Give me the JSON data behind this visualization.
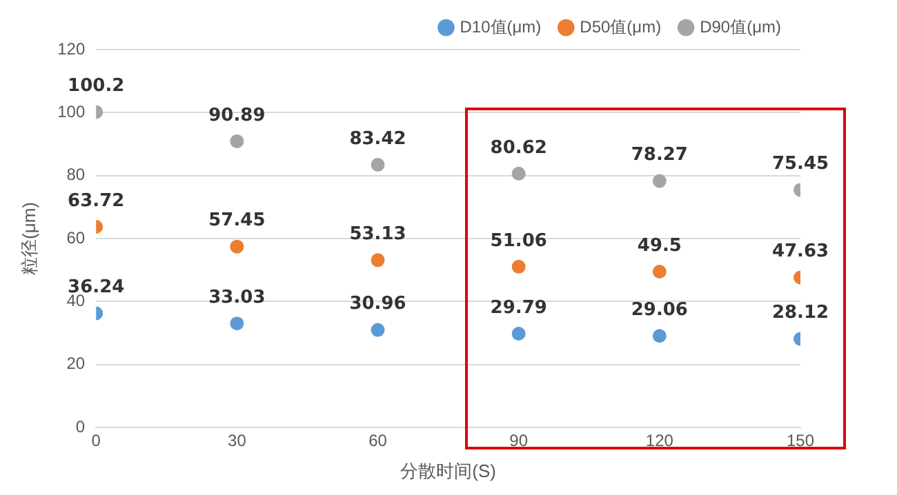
{
  "chart_data": {
    "type": "scatter",
    "xlabel": "分散时间(S)",
    "ylabel": "粒径(μm)",
    "x": [
      0,
      30,
      60,
      90,
      120,
      150
    ],
    "series": [
      {
        "name": "D10值(μm)",
        "color": "#5b9bd5",
        "values": [
          36.24,
          33.03,
          30.96,
          29.79,
          29.06,
          28.12
        ]
      },
      {
        "name": "D50值(μm)",
        "color": "#ed7d31",
        "values": [
          63.72,
          57.45,
          53.13,
          51.06,
          49.5,
          47.63
        ]
      },
      {
        "name": "D90值(μm)",
        "color": "#a5a5a5",
        "values": [
          100.2,
          90.89,
          83.42,
          80.62,
          78.27,
          75.45
        ]
      }
    ],
    "xlim": [
      0,
      150
    ],
    "xticks": [
      0,
      30,
      60,
      90,
      120,
      150
    ],
    "ylim": [
      0,
      120
    ],
    "yticks": [
      0,
      20,
      40,
      60,
      80,
      100,
      120
    ],
    "grid": "y",
    "legend": "top right",
    "marker": "circle",
    "data_labels": true
  }
}
